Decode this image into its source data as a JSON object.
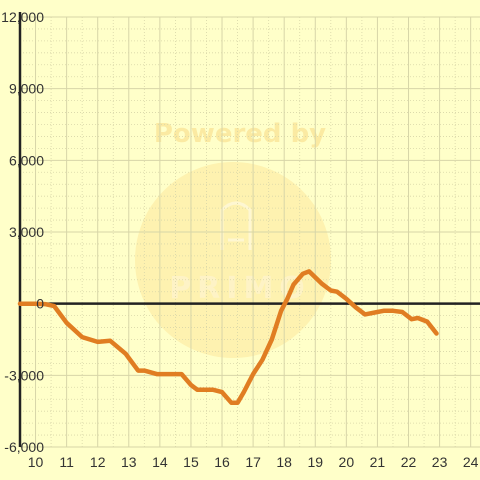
{
  "chart_data": {
    "type": "line",
    "title": "",
    "xlabel": "",
    "ylabel": "",
    "xlim": [
      9.5,
      24.3
    ],
    "ylim": [
      -6000,
      12000
    ],
    "x_ticks": [
      10,
      11,
      12,
      13,
      14,
      15,
      16,
      17,
      18,
      19,
      20,
      21,
      22,
      23,
      24
    ],
    "y_ticks": [
      -6000,
      -3000,
      0,
      3000,
      6000,
      9000,
      12000
    ],
    "y_tick_labels": [
      "-6,000",
      "-3,000",
      "0",
      "3,000",
      "6,000",
      "9,000",
      "12,000"
    ],
    "grid": true,
    "series": [
      {
        "name": "",
        "color": "#e07d22",
        "x": [
          9.5,
          10.0,
          10.3,
          10.6,
          11.0,
          11.5,
          12.0,
          12.4,
          12.9,
          13.3,
          13.5,
          13.9,
          14.2,
          14.7,
          15.0,
          15.2,
          15.5,
          15.7,
          16.0,
          16.3,
          16.5,
          16.7,
          17.0,
          17.3,
          17.6,
          17.9,
          18.1,
          18.3,
          18.6,
          18.8,
          19.0,
          19.2,
          19.5,
          19.7,
          20.0,
          20.3,
          20.6,
          21.0,
          21.2,
          21.5,
          21.8,
          22.1,
          22.3,
          22.6,
          22.9
        ],
        "y": [
          0,
          0,
          -20,
          -100,
          -800,
          -1400,
          -1600,
          -1550,
          -2100,
          -2800,
          -2800,
          -2950,
          -2950,
          -2950,
          -3400,
          -3600,
          -3600,
          -3600,
          -3700,
          -4150,
          -4150,
          -3700,
          -2950,
          -2350,
          -1500,
          -300,
          200,
          800,
          1250,
          1350,
          1100,
          850,
          550,
          500,
          200,
          -150,
          -450,
          -350,
          -300,
          -300,
          -350,
          -650,
          -600,
          -750,
          -1250
        ]
      }
    ]
  },
  "watermark": {
    "top_text": "Powered by",
    "brand_text": "PRIMO",
    "color": "#fde9a0"
  },
  "colors": {
    "background": "#ffffc9",
    "grid": "#d7d5a8",
    "zero_line": "#222222",
    "axis": "#222222",
    "line": "#e07d22"
  }
}
